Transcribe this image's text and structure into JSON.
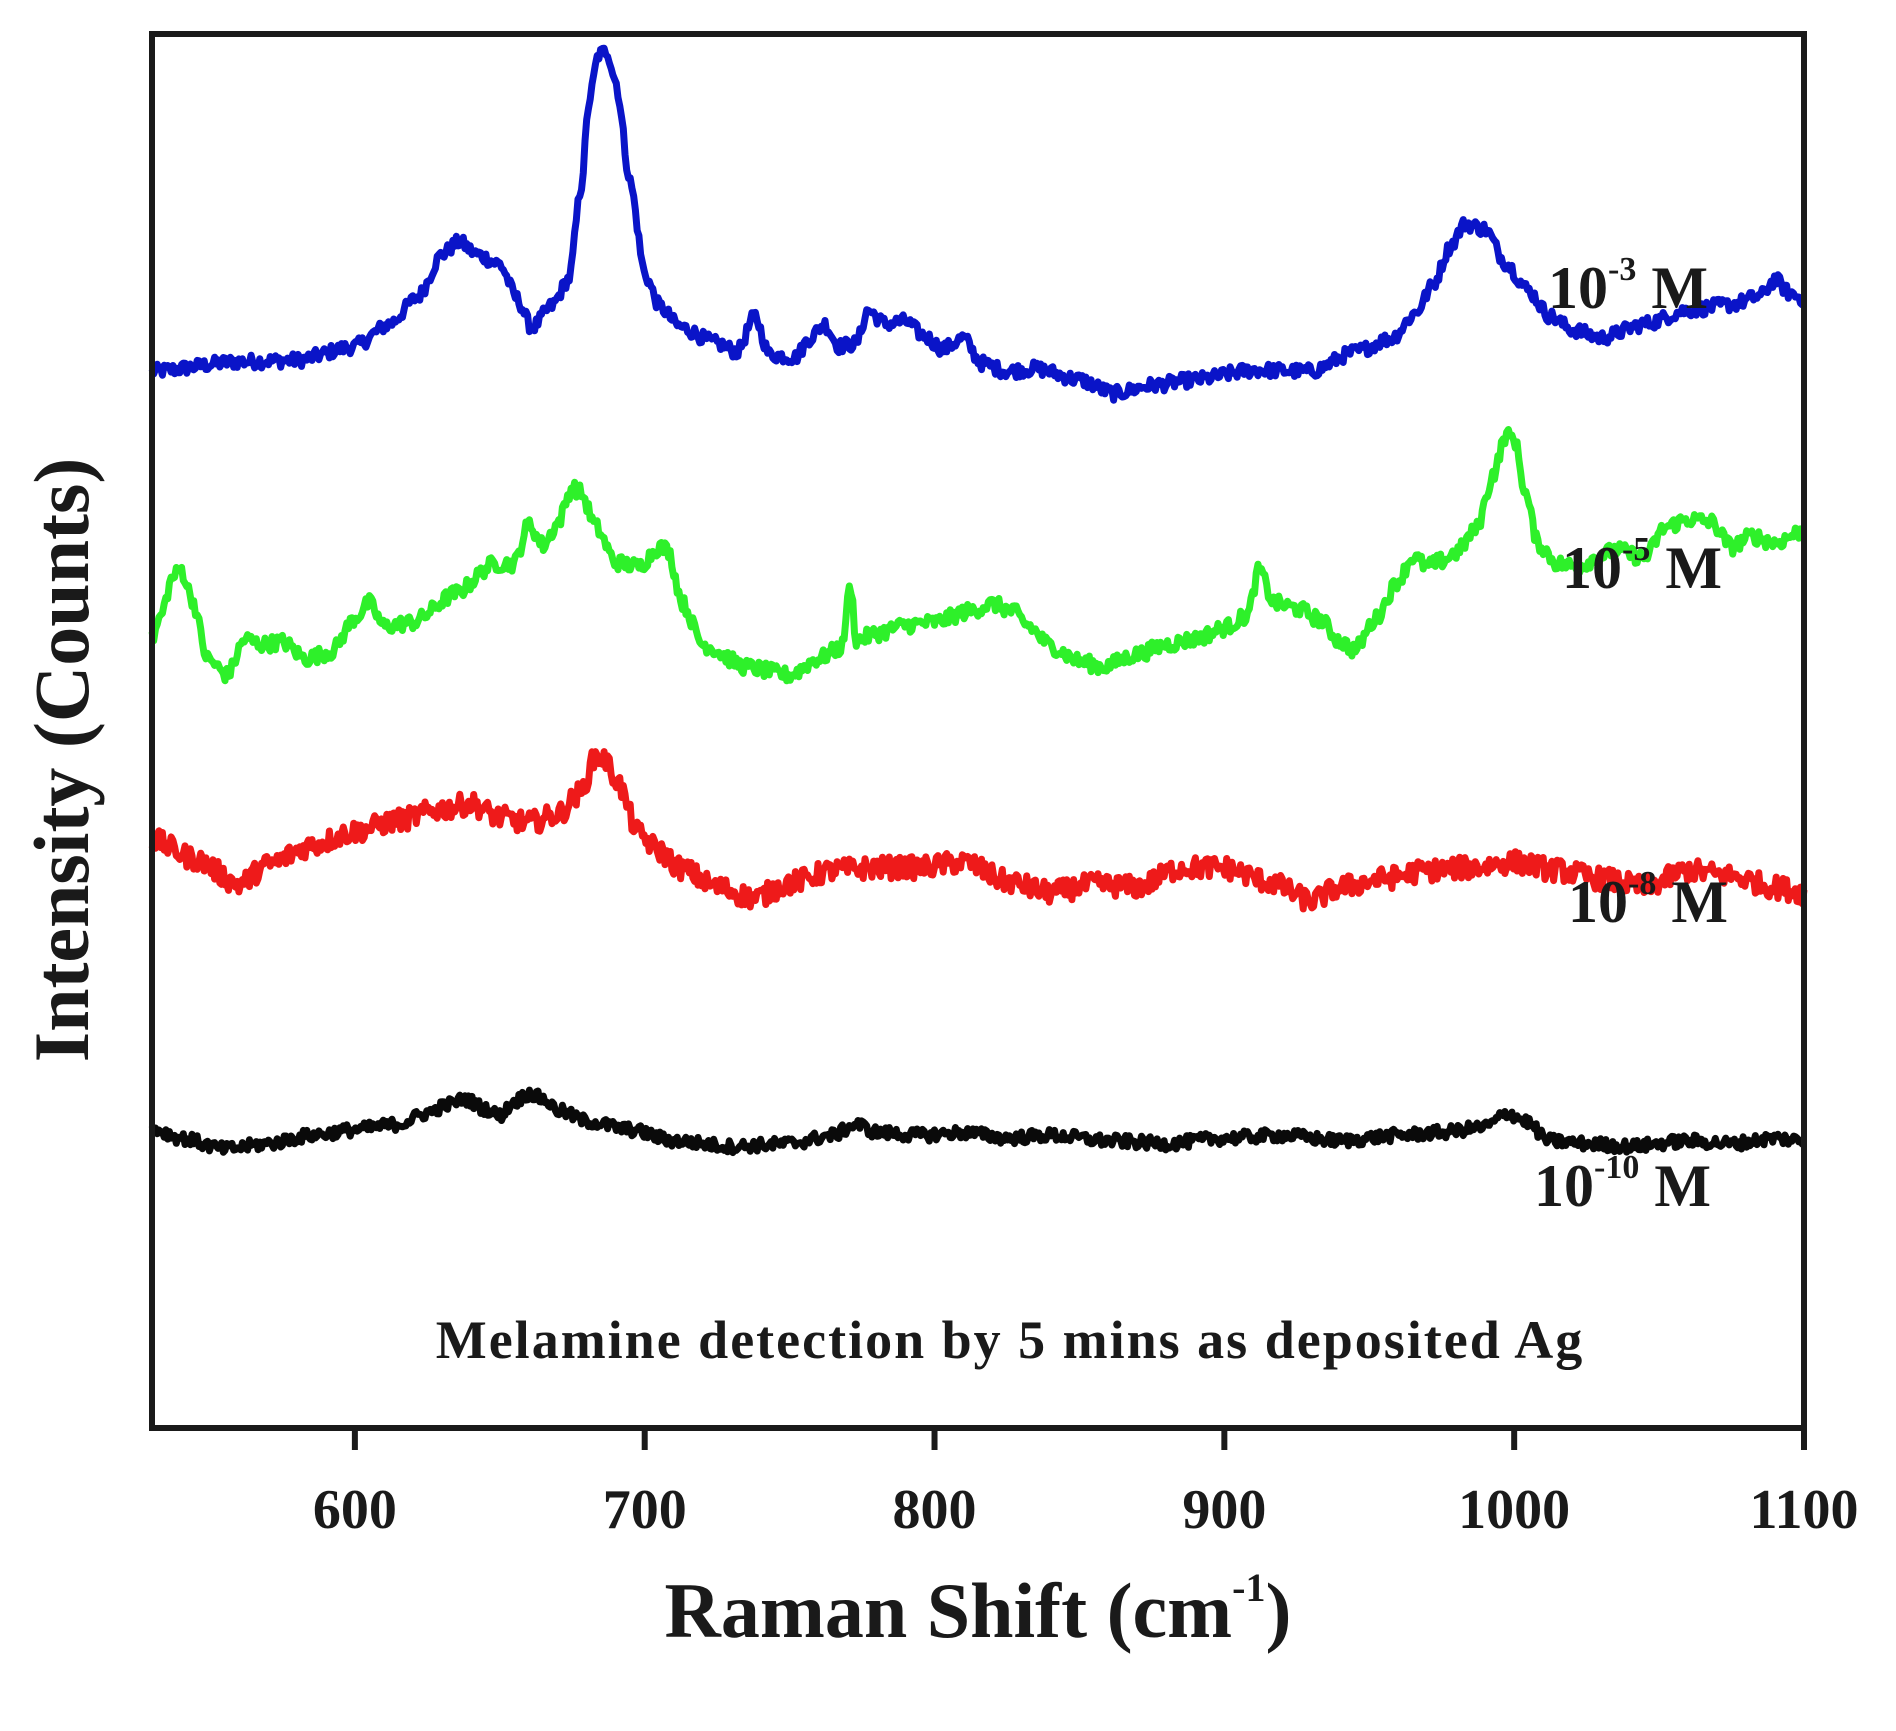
{
  "chart_data": {
    "type": "line",
    "title": "",
    "annotation": "Melamine detection by 5 mins as deposited Ag",
    "xlabel": "Raman Shift (cm",
    "xlabel_sup": "-1",
    "xlabel_close": ")",
    "ylabel": "Intensity (Counts)",
    "xlim": [
      530,
      1100
    ],
    "ylim": [
      0,
      100
    ],
    "xticks": [
      600,
      700,
      800,
      900,
      1000,
      1100
    ],
    "xtick_labels": [
      "600",
      "700",
      "800",
      "900",
      "1000",
      "1100"
    ],
    "y_ticks_shown": false,
    "grid": false,
    "legend": "inline labels at right of each trace",
    "series": [
      {
        "name": "10^-3 M",
        "label_base": "10",
        "label_exp": "-3",
        "label_unit": "M",
        "color": "#0a14c8",
        "noise": 0.5,
        "points": [
          [
            530,
            75.8
          ],
          [
            560,
            76.5
          ],
          [
            580,
            76.6
          ],
          [
            600,
            77.6
          ],
          [
            612,
            79.2
          ],
          [
            622,
            81.2
          ],
          [
            630,
            84.2
          ],
          [
            636,
            85.1
          ],
          [
            642,
            84.2
          ],
          [
            650,
            83.5
          ],
          [
            656,
            81.0
          ],
          [
            661,
            78.9
          ],
          [
            668,
            80.5
          ],
          [
            674,
            82.5
          ],
          [
            678,
            89.0
          ],
          [
            681,
            95.4
          ],
          [
            684,
            98.5
          ],
          [
            687,
            98.8
          ],
          [
            690,
            96.6
          ],
          [
            695,
            89.4
          ],
          [
            700,
            82.8
          ],
          [
            705,
            80.5
          ],
          [
            712,
            79.0
          ],
          [
            725,
            77.8
          ],
          [
            732,
            77.2
          ],
          [
            738,
            79.8
          ],
          [
            743,
            77.0
          ],
          [
            752,
            76.8
          ],
          [
            757,
            78.2
          ],
          [
            762,
            79.2
          ],
          [
            767,
            77.6
          ],
          [
            773,
            77.8
          ],
          [
            777,
            80.2
          ],
          [
            783,
            79.2
          ],
          [
            790,
            79.4
          ],
          [
            796,
            78.4
          ],
          [
            803,
            77.4
          ],
          [
            810,
            78.2
          ],
          [
            816,
            76.4
          ],
          [
            825,
            75.8
          ],
          [
            835,
            76.0
          ],
          [
            850,
            75.2
          ],
          [
            862,
            74.2
          ],
          [
            875,
            74.8
          ],
          [
            890,
            75.2
          ],
          [
            910,
            75.9
          ],
          [
            930,
            75.8
          ],
          [
            945,
            77.2
          ],
          [
            958,
            78.2
          ],
          [
            966,
            80.0
          ],
          [
            972,
            82.0
          ],
          [
            978,
            84.8
          ],
          [
            983,
            86.4
          ],
          [
            990,
            86.0
          ],
          [
            997,
            83.6
          ],
          [
            1005,
            81.6
          ],
          [
            1012,
            79.8
          ],
          [
            1020,
            78.8
          ],
          [
            1030,
            78.2
          ],
          [
            1045,
            79.2
          ],
          [
            1060,
            80.2
          ],
          [
            1075,
            80.6
          ],
          [
            1085,
            81.2
          ],
          [
            1090,
            82.4
          ],
          [
            1095,
            81.4
          ],
          [
            1100,
            81.0
          ]
        ]
      },
      {
        "name": "10^-5 M",
        "label_base": "10",
        "label_exp": "-5",
        "label_unit": "M",
        "color": "#2ef02a",
        "noise": 0.55,
        "points": [
          [
            530,
            56.6
          ],
          [
            533,
            58.2
          ],
          [
            537,
            61.0
          ],
          [
            540,
            61.6
          ],
          [
            544,
            59.4
          ],
          [
            549,
            55.2
          ],
          [
            556,
            54.0
          ],
          [
            562,
            56.6
          ],
          [
            568,
            56.2
          ],
          [
            575,
            56.4
          ],
          [
            583,
            55.2
          ],
          [
            592,
            55.7
          ],
          [
            600,
            58.1
          ],
          [
            605,
            59.2
          ],
          [
            610,
            57.5
          ],
          [
            620,
            57.8
          ],
          [
            635,
            59.9
          ],
          [
            648,
            62.0
          ],
          [
            655,
            62.0
          ],
          [
            660,
            64.9
          ],
          [
            665,
            63.3
          ],
          [
            670,
            64.9
          ],
          [
            675,
            67.5
          ],
          [
            678,
            67.1
          ],
          [
            683,
            64.7
          ],
          [
            690,
            62.1
          ],
          [
            698,
            61.8
          ],
          [
            705,
            63.2
          ],
          [
            708,
            63.0
          ],
          [
            713,
            59.2
          ],
          [
            720,
            56.2
          ],
          [
            735,
            54.6
          ],
          [
            750,
            54.0
          ],
          [
            760,
            55.2
          ],
          [
            768,
            56.0
          ],
          [
            771,
            60.5
          ],
          [
            773,
            56.5
          ],
          [
            780,
            57.0
          ],
          [
            790,
            57.6
          ],
          [
            800,
            57.8
          ],
          [
            812,
            58.6
          ],
          [
            820,
            59.1
          ],
          [
            827,
            58.6
          ],
          [
            832,
            57.6
          ],
          [
            840,
            56.1
          ],
          [
            850,
            55.0
          ],
          [
            858,
            54.6
          ],
          [
            870,
            55.5
          ],
          [
            880,
            56.2
          ],
          [
            890,
            56.6
          ],
          [
            900,
            57.4
          ],
          [
            908,
            58.3
          ],
          [
            912,
            61.6
          ],
          [
            917,
            59.2
          ],
          [
            925,
            58.8
          ],
          [
            933,
            58.0
          ],
          [
            940,
            56.4
          ],
          [
            945,
            55.8
          ],
          [
            952,
            58.0
          ],
          [
            960,
            60.8
          ],
          [
            965,
            62.5
          ],
          [
            970,
            61.8
          ],
          [
            975,
            62.2
          ],
          [
            980,
            62.8
          ],
          [
            987,
            64.5
          ],
          [
            993,
            68.5
          ],
          [
            997,
            71.2
          ],
          [
            1000,
            71.0
          ],
          [
            1004,
            67.0
          ],
          [
            1008,
            63.5
          ],
          [
            1015,
            62.0
          ],
          [
            1022,
            61.8
          ],
          [
            1030,
            62.6
          ],
          [
            1035,
            63.0
          ],
          [
            1045,
            62.4
          ],
          [
            1052,
            64.6
          ],
          [
            1060,
            65.2
          ],
          [
            1068,
            65.0
          ],
          [
            1075,
            63.2
          ],
          [
            1082,
            64.0
          ],
          [
            1090,
            63.5
          ],
          [
            1100,
            64.4
          ]
        ]
      },
      {
        "name": "10^-8 M",
        "label_base": "10",
        "label_exp": "-8",
        "label_unit": "M",
        "color": "#ee1a1a",
        "noise": 0.8,
        "points": [
          [
            530,
            42.2
          ],
          [
            545,
            40.8
          ],
          [
            560,
            39.0
          ],
          [
            570,
            40.4
          ],
          [
            585,
            41.8
          ],
          [
            600,
            42.8
          ],
          [
            615,
            43.6
          ],
          [
            630,
            44.4
          ],
          [
            640,
            44.8
          ],
          [
            650,
            43.8
          ],
          [
            660,
            43.4
          ],
          [
            670,
            44.0
          ],
          [
            678,
            45.6
          ],
          [
            683,
            48.2
          ],
          [
            686,
            48.0
          ],
          [
            690,
            46.6
          ],
          [
            698,
            42.6
          ],
          [
            705,
            41.4
          ],
          [
            712,
            40.2
          ],
          [
            725,
            38.8
          ],
          [
            738,
            38.0
          ],
          [
            750,
            39.1
          ],
          [
            765,
            40.0
          ],
          [
            780,
            40.2
          ],
          [
            795,
            40.2
          ],
          [
            810,
            40.6
          ],
          [
            825,
            39.2
          ],
          [
            840,
            38.4
          ],
          [
            855,
            39.0
          ],
          [
            870,
            38.8
          ],
          [
            885,
            40.2
          ],
          [
            900,
            40.2
          ],
          [
            915,
            39.2
          ],
          [
            930,
            37.8
          ],
          [
            940,
            38.8
          ],
          [
            955,
            39.4
          ],
          [
            970,
            40.0
          ],
          [
            985,
            40.2
          ],
          [
            1000,
            40.6
          ],
          [
            1015,
            40.0
          ],
          [
            1030,
            39.4
          ],
          [
            1045,
            38.8
          ],
          [
            1060,
            40.0
          ],
          [
            1075,
            39.6
          ],
          [
            1090,
            38.8
          ],
          [
            1100,
            38.4
          ]
        ]
      },
      {
        "name": "10^-10 M",
        "label_base": "10",
        "label_exp": "-10",
        "label_unit": "M",
        "color": "#0a0a0a",
        "noise": 0.45,
        "points": [
          [
            530,
            21.5
          ],
          [
            540,
            20.8
          ],
          [
            555,
            20.0
          ],
          [
            570,
            20.4
          ],
          [
            585,
            21.0
          ],
          [
            600,
            21.4
          ],
          [
            615,
            21.8
          ],
          [
            625,
            22.6
          ],
          [
            632,
            23.2
          ],
          [
            638,
            23.6
          ],
          [
            645,
            22.9
          ],
          [
            650,
            22.4
          ],
          [
            655,
            23.4
          ],
          [
            660,
            24.0
          ],
          [
            665,
            23.6
          ],
          [
            670,
            22.8
          ],
          [
            680,
            22.0
          ],
          [
            695,
            21.4
          ],
          [
            710,
            20.6
          ],
          [
            730,
            20.2
          ],
          [
            750,
            20.4
          ],
          [
            765,
            21.0
          ],
          [
            773,
            21.8
          ],
          [
            780,
            21.2
          ],
          [
            795,
            21.0
          ],
          [
            810,
            21.2
          ],
          [
            825,
            20.8
          ],
          [
            840,
            21.0
          ],
          [
            860,
            20.6
          ],
          [
            880,
            20.4
          ],
          [
            900,
            20.8
          ],
          [
            920,
            21.0
          ],
          [
            940,
            20.6
          ],
          [
            960,
            21.0
          ],
          [
            975,
            21.2
          ],
          [
            990,
            21.6
          ],
          [
            998,
            22.6
          ],
          [
            1004,
            22.0
          ],
          [
            1012,
            20.6
          ],
          [
            1025,
            20.4
          ],
          [
            1040,
            20.2
          ],
          [
            1060,
            20.6
          ],
          [
            1075,
            20.4
          ],
          [
            1090,
            20.8
          ],
          [
            1100,
            20.6
          ]
        ]
      }
    ]
  }
}
